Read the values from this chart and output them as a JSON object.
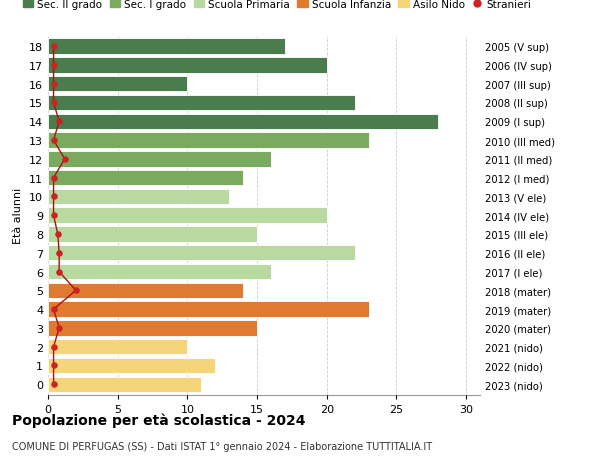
{
  "ages": [
    18,
    17,
    16,
    15,
    14,
    13,
    12,
    11,
    10,
    9,
    8,
    7,
    6,
    5,
    4,
    3,
    2,
    1,
    0
  ],
  "right_labels": [
    "2005 (V sup)",
    "2006 (IV sup)",
    "2007 (III sup)",
    "2008 (II sup)",
    "2009 (I sup)",
    "2010 (III med)",
    "2011 (II med)",
    "2012 (I med)",
    "2013 (V ele)",
    "2014 (IV ele)",
    "2015 (III ele)",
    "2016 (II ele)",
    "2017 (I ele)",
    "2018 (mater)",
    "2019 (mater)",
    "2020 (mater)",
    "2021 (nido)",
    "2022 (nido)",
    "2023 (nido)"
  ],
  "bar_values": [
    17,
    20,
    10,
    22,
    28,
    23,
    16,
    14,
    13,
    20,
    15,
    22,
    16,
    14,
    23,
    15,
    10,
    12,
    11
  ],
  "bar_colors": [
    "#4a7c4e",
    "#4a7c4e",
    "#4a7c4e",
    "#4a7c4e",
    "#4a7c4e",
    "#7aaa5e",
    "#7aaa5e",
    "#7aaa5e",
    "#b8d9a0",
    "#b8d9a0",
    "#b8d9a0",
    "#b8d9a0",
    "#b8d9a0",
    "#e07a30",
    "#e07a30",
    "#e07a30",
    "#f5d57a",
    "#f5d57a",
    "#f5d57a"
  ],
  "stranieri_x": [
    0.4,
    0.4,
    0.4,
    0.4,
    0.8,
    0.4,
    1.2,
    0.4,
    0.4,
    0.4,
    0.7,
    0.8,
    0.8,
    2.0,
    0.4,
    0.8,
    0.4,
    0.4,
    0.4
  ],
  "legend_labels": [
    "Sec. II grado",
    "Sec. I grado",
    "Scuola Primaria",
    "Scuola Infanzia",
    "Asilo Nido",
    "Stranieri"
  ],
  "legend_colors": [
    "#4a7c4e",
    "#7aaa5e",
    "#b8d9a0",
    "#e07a30",
    "#f5d57a",
    "#cc2222"
  ],
  "title": "Popolazione per età scolastica - 2024",
  "subtitle": "COMUNE DI PERFUGAS (SS) - Dati ISTAT 1° gennaio 2024 - Elaborazione TUTTITALIA.IT",
  "ylabel_left": "Età alunni",
  "xlim": [
    0,
    31
  ],
  "xticks": [
    0,
    5,
    10,
    15,
    20,
    25,
    30
  ],
  "bar_height": 0.82,
  "background_color": "#ffffff",
  "grid_color": "#cccccc"
}
